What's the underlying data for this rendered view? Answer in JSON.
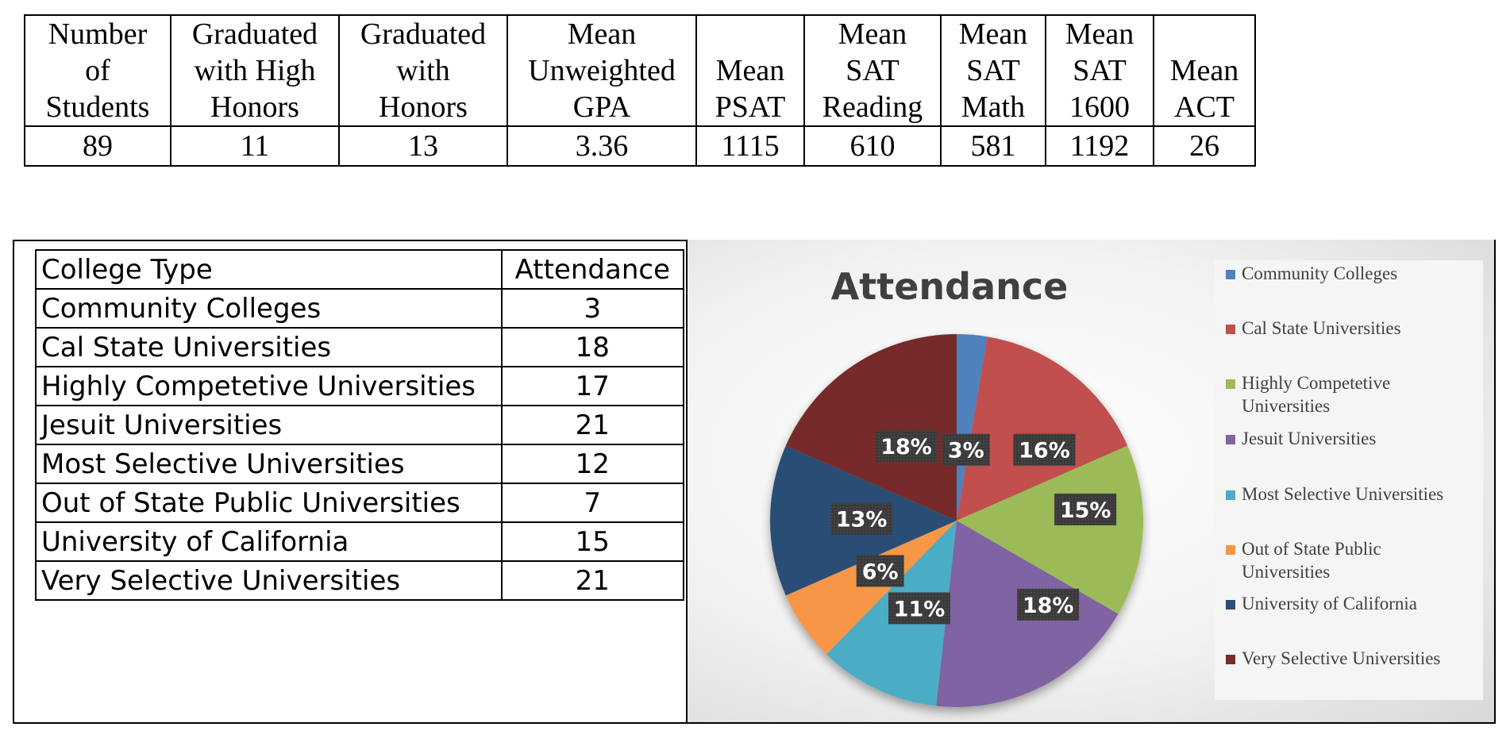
{
  "stats_table": {
    "headers": [
      [
        "Number",
        "of",
        "Students"
      ],
      [
        "Graduated",
        "with High",
        "Honors"
      ],
      [
        "Graduated",
        "with",
        "Honors"
      ],
      [
        "Mean",
        "Unweighted",
        "GPA"
      ],
      [
        "",
        "Mean",
        "PSAT"
      ],
      [
        "Mean",
        "SAT",
        "Reading"
      ],
      [
        "Mean",
        "SAT",
        "Math"
      ],
      [
        "Mean",
        "SAT",
        "1600"
      ],
      [
        "",
        "Mean",
        "ACT"
      ]
    ],
    "values": [
      "89",
      "11",
      "13",
      "3.36",
      "1115",
      "610",
      "581",
      "1192",
      "26"
    ]
  },
  "attendance_table": {
    "header": [
      "College Type",
      "Attendance"
    ],
    "rows": [
      [
        "Community Colleges",
        "3"
      ],
      [
        "Cal State Universities",
        "18"
      ],
      [
        "Highly Competetive Universities",
        "17"
      ],
      [
        "Jesuit Universities",
        "21"
      ],
      [
        "Most Selective Universities",
        "12"
      ],
      [
        "Out of State Public Universities",
        "7"
      ],
      [
        "University of California",
        "15"
      ],
      [
        "Very Selective Universities",
        "21"
      ]
    ]
  },
  "chart_data": {
    "type": "pie",
    "title": "Attendance",
    "categories": [
      "Community Colleges",
      "Cal State Universities",
      "Highly Competetive Universities",
      "Jesuit Universities",
      "Most Selective Universities",
      "Out of State Public Universities",
      "University of California",
      "Very Selective Universities"
    ],
    "legend_labels": [
      [
        "Community Colleges"
      ],
      [
        "Cal State Universities"
      ],
      [
        "Highly Competetive",
        "Universities"
      ],
      [
        "Jesuit Universities"
      ],
      [
        "Most Selective Universities"
      ],
      [
        "Out of State Public",
        "Universities"
      ],
      [
        "University of California"
      ],
      [
        "Very Selective Universities"
      ]
    ],
    "values": [
      3,
      18,
      17,
      21,
      12,
      7,
      15,
      21
    ],
    "data_labels": [
      "3%",
      "16%",
      "15%",
      "18%",
      "11%",
      "6%",
      "13%",
      "18%"
    ],
    "colors": [
      "#4F81BD",
      "#C0504D",
      "#9BBB59",
      "#8064A2",
      "#4BACC6",
      "#F79646",
      "#2C4D75",
      "#772C2A"
    ],
    "legend_position": "right"
  }
}
